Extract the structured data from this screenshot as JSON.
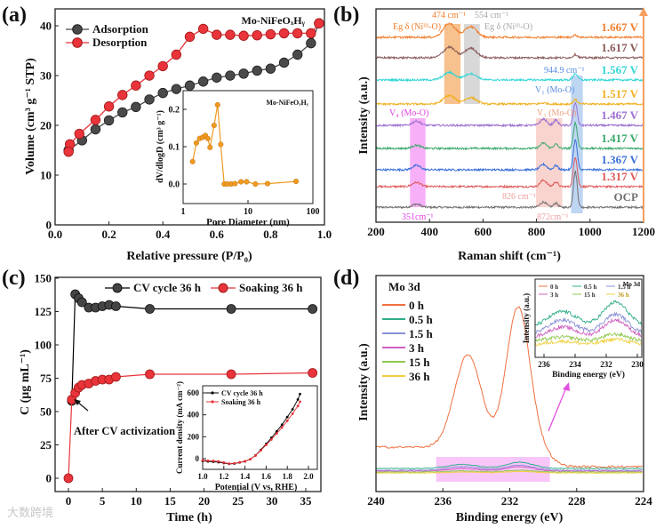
{
  "watermark": "大数跨境",
  "chart_data": [
    {
      "type": "line",
      "panel_label": "(a)",
      "title": "Mo-NiFeOₓHᵧ",
      "xlabel": "Relative pressure (P/P₀)",
      "ylabel": "Volume (cm³ g⁻¹ STP)",
      "xlim": [
        0,
        1
      ],
      "ylim": [
        0,
        43.4
      ],
      "xticks": [
        "0.0",
        "0.2",
        "0.4",
        "0.6",
        "0.8",
        "1.0"
      ],
      "yticks": [
        "0",
        "10",
        "20",
        "30",
        "40"
      ],
      "series": [
        {
          "name": "Adsorption",
          "color": "#4a4a4a",
          "x": [
            0.05,
            0.1,
            0.15,
            0.2,
            0.25,
            0.3,
            0.35,
            0.4,
            0.45,
            0.5,
            0.55,
            0.6,
            0.65,
            0.7,
            0.75,
            0.8,
            0.85,
            0.9,
            0.95,
            0.98
          ],
          "y": [
            15,
            17,
            19.2,
            21,
            22.6,
            23.7,
            25.2,
            26.5,
            27.3,
            28,
            28.8,
            29.6,
            30,
            30.4,
            31,
            31.4,
            32.6,
            34.2,
            36.5,
            40.5
          ]
        },
        {
          "name": "Desorption",
          "color": "#e8343a",
          "x": [
            0.98,
            0.95,
            0.9,
            0.85,
            0.8,
            0.75,
            0.7,
            0.65,
            0.6,
            0.55,
            0.5,
            0.45,
            0.4,
            0.35,
            0.3,
            0.25,
            0.2,
            0.15,
            0.09,
            0.055,
            0.05
          ],
          "y": [
            40.5,
            38.5,
            38.5,
            38.5,
            38.3,
            38.1,
            38,
            38.2,
            38.2,
            39.4,
            37.8,
            34.2,
            31.9,
            30,
            28,
            26.1,
            23.8,
            21.1,
            18.3,
            16.2,
            14.7
          ]
        }
      ],
      "inset": {
        "title": "Mo-NiFeOₓHᵧ",
        "xlabel": "Pore Diameter (nm)",
        "ylabel": "dV/dlogD (cm³ g⁻¹)",
        "xscale": "log",
        "xlim": [
          1,
          100
        ],
        "ylim": [
          -0.036,
          0.25
        ],
        "xticks": [
          "1",
          "10",
          "100"
        ],
        "yticks": [
          "0.0",
          "0.1",
          "0.2"
        ],
        "series": [
          {
            "name": "Pore size distribution",
            "color": "#f09a20",
            "x": [
              1.4,
              1.6,
              1.8,
              2.0,
              2.2,
              2.4,
              2.6,
              3.0,
              3.4,
              3.8,
              4.3,
              4.8,
              5.5,
              6.3,
              7.8,
              9.5,
              13,
              20,
              55
            ],
            "y": [
              0.06,
              0.11,
              0.122,
              0.125,
              0.13,
              0.122,
              0.098,
              0.157,
              0.212,
              0.106,
              0,
              0,
              0,
              0.001,
              0.006,
              0.006,
              0,
              0.001,
              0.007
            ]
          }
        ]
      }
    },
    {
      "type": "line",
      "panel_label": "(b)",
      "xlabel": "Raman shift (cm⁻¹)",
      "ylabel": "Intensity (a.u.)",
      "xlim": [
        200,
        1200
      ],
      "ylim": [
        0,
        10
      ],
      "xticks": [
        "200",
        "400",
        "600",
        "800",
        "1000",
        "1200"
      ],
      "series": [
        {
          "name": "OCP",
          "color": "#707070",
          "offset": 0.7,
          "peaks": [
            [
              351,
              0.15,
              15
            ],
            [
              826,
              0.25,
              12
            ],
            [
              872,
              0.2,
              8
            ],
            [
              945,
              1.67,
              7
            ]
          ]
        },
        {
          "name": "1.317 V",
          "color": "#e05a5a",
          "offset": 1.67,
          "peaks": [
            [
              351,
              0.2,
              15
            ],
            [
              826,
              0.3,
              12
            ],
            [
              872,
              0.22,
              8
            ],
            [
              945,
              1.4,
              7
            ]
          ]
        },
        {
          "name": "1.367 V",
          "color": "#3a6fd8",
          "offset": 2.46,
          "peaks": [
            [
              351,
              0.2,
              15
            ],
            [
              826,
              0.25,
              12
            ],
            [
              872,
              0.2,
              8
            ],
            [
              945,
              1.4,
              7
            ]
          ]
        },
        {
          "name": "1.417 V",
          "color": "#3aa86a",
          "offset": 3.46,
          "peaks": [
            [
              351,
              0.15,
              15
            ],
            [
              826,
              0.25,
              12
            ],
            [
              872,
              0.2,
              8
            ],
            [
              945,
              1.2,
              7
            ]
          ]
        },
        {
          "name": "1.467 V",
          "color": "#9b6fd0",
          "offset": 4.54,
          "peaks": [
            [
              351,
              0.2,
              15
            ],
            [
              826,
              0.3,
              12
            ],
            [
              872,
              0.25,
              8
            ],
            [
              945,
              1.05,
              7
            ]
          ]
        },
        {
          "name": "1.517 V",
          "color": "#f0b020",
          "offset": 5.54,
          "peaks": [
            [
              474,
              0.4,
              22
            ],
            [
              554,
              0.3,
              22
            ],
            [
              826,
              0.05,
              12
            ],
            [
              945,
              0.2,
              8
            ]
          ]
        },
        {
          "name": "1.567 V",
          "color": "#33d6d6",
          "offset": 6.67,
          "peaks": [
            [
              474,
              0.35,
              22
            ],
            [
              554,
              0.3,
              22
            ],
            [
              945,
              0.3,
              8
            ]
          ]
        },
        {
          "name": "1.617 V",
          "color": "#8a5a5a",
          "offset": 7.71,
          "peaks": [
            [
              474,
              0.5,
              22
            ],
            [
              554,
              0.45,
              22
            ],
            [
              945,
              0.15,
              8
            ]
          ]
        },
        {
          "name": "1.667 V",
          "color": "#f08030",
          "offset": 8.67,
          "peaks": [
            [
              474,
              0.65,
              22
            ],
            [
              554,
              0.5,
              22
            ],
            [
              945,
              0.1,
              8
            ]
          ]
        }
      ],
      "bands": [
        {
          "range": [
            455,
            516
          ],
          "color": "#f09030"
        },
        {
          "range": [
            529,
            588
          ],
          "color": "#b8b8b8"
        },
        {
          "range": [
            929,
            973
          ],
          "color": "#8ab4ea"
        },
        {
          "range": [
            327,
            385
          ],
          "color": "#f070f0"
        },
        {
          "range": [
            798,
            896
          ],
          "color": "#f4b0a8"
        }
      ],
      "annotations": [
        {
          "text": "474 cm⁻¹",
          "color": "#f08030"
        },
        {
          "text": "554 cm⁻¹",
          "color": "#a8a8a8"
        },
        {
          "text": "Eg δ (Niᴵᴵᴵ-O)",
          "color": "#f08030"
        },
        {
          "text": "Eg δ (Niᴵᴵᴵ-O)",
          "color": "#a8a8a8"
        },
        {
          "text": "944.9 cm⁻¹",
          "color": "#5b8ee0"
        },
        {
          "text": "V₁ (Mo-O)",
          "color": "#5b8ee0"
        },
        {
          "text": "V₄ (Mo-O)",
          "color": "#e040e0"
        },
        {
          "text": "V₃ (Mo-O)",
          "color": "#f0a080"
        },
        {
          "text": "826 cm⁻¹",
          "color": "#f0a0a0"
        },
        {
          "text": "872cm⁻¹",
          "color": "#f0a0a0"
        },
        {
          "text": "351cm⁻¹",
          "color": "#e040e0"
        }
      ]
    },
    {
      "type": "line",
      "panel_label": "(c)",
      "xlabel": "Time (h)",
      "ylabel": "C (μg mL⁻¹)",
      "xlim": [
        -2,
        37
      ],
      "ylim": [
        -10,
        150
      ],
      "xticks": [
        "0",
        "5",
        "10",
        "15",
        "20",
        "25",
        "30",
        "35"
      ],
      "yticks": [
        "0",
        "25",
        "50",
        "75",
        "100",
        "125",
        "150"
      ],
      "annotation": "After CV activization",
      "series": [
        {
          "name": "CV cycle 36 h",
          "color": "#000000",
          "marker": "#444444",
          "x": [
            0.5,
            1,
            1.5,
            2,
            3,
            4,
            5,
            6,
            7,
            12,
            24,
            36
          ],
          "y": [
            58,
            138,
            135,
            132,
            128,
            128,
            129,
            130,
            129,
            127,
            127,
            127
          ]
        },
        {
          "name": "Soaking 36 h",
          "color": "#e8343a",
          "marker": "#e8343a",
          "x": [
            0,
            0.5,
            1,
            1.5,
            2,
            3,
            4,
            5,
            6,
            7,
            12,
            24,
            36
          ],
          "y": [
            0,
            59,
            64,
            68,
            70,
            71,
            73,
            74,
            74,
            76,
            78,
            78,
            79
          ]
        }
      ],
      "inset": {
        "xlabel": "Potential (V vs. RHE)",
        "ylabel": "Current density (mA cm⁻²)",
        "xlim": [
          1.0,
          2.0
        ],
        "ylim": [
          -100,
          650
        ],
        "xticks": [
          "1.0",
          "1.2",
          "1.4",
          "1.6",
          "1.8",
          "2.0"
        ],
        "yticks": [
          "0",
          "200",
          "400",
          "600"
        ],
        "series": [
          {
            "name": "CV cycle  36 h",
            "color": "#000000",
            "x": [
              1.0,
              1.05,
              1.1,
              1.15,
              1.2,
              1.25,
              1.3,
              1.35,
              1.4,
              1.45,
              1.5,
              1.55,
              1.6,
              1.65,
              1.7,
              1.75,
              1.8,
              1.85,
              1.9,
              1.92
            ],
            "y": [
              -20,
              -25,
              -28,
              -32,
              -40,
              -48,
              -45,
              -35,
              -25,
              -5,
              30,
              80,
              135,
              190,
              250,
              310,
              380,
              450,
              540,
              590
            ]
          },
          {
            "name": "Soaking 36 h",
            "color": "#e8343a",
            "x": [
              1.0,
              1.05,
              1.1,
              1.15,
              1.2,
              1.25,
              1.3,
              1.35,
              1.4,
              1.45,
              1.5,
              1.55,
              1.6,
              1.65,
              1.7,
              1.75,
              1.8,
              1.85,
              1.9,
              1.92
            ],
            "y": [
              -15,
              -18,
              -20,
              -25,
              -35,
              -45,
              -42,
              -33,
              -23,
              -5,
              28,
              75,
              125,
              175,
              230,
              285,
              345,
              410,
              480,
              520
            ]
          }
        ]
      }
    },
    {
      "type": "line",
      "panel_label": "(d)",
      "title": "Mo 3d",
      "xlabel": "Binding energy (eV)",
      "ylabel": "Intensity (a.u.)",
      "xlim": [
        240,
        224
      ],
      "ylim": [
        0,
        12.15
      ],
      "xticks": [
        "240",
        "236",
        "232",
        "228",
        "224"
      ],
      "highlight_range": [
        236.4,
        229.6
      ],
      "series": [
        {
          "name": "0 h",
          "color": "#f07040",
          "baseline": [
            2.5,
            1.4
          ],
          "peaks": [
            [
              234.5,
              5.2,
              0.8
            ],
            [
              231.5,
              7.9,
              0.7
            ]
          ]
        },
        {
          "name": "0.5 h",
          "color": "#2fae8a",
          "baseline": [
            1.3,
            1.3
          ],
          "peaks": [
            [
              234.8,
              0.22,
              0.9
            ],
            [
              231.4,
              0.35,
              0.8
            ]
          ]
        },
        {
          "name": "1.5 h",
          "color": "#8a90d8",
          "baseline": [
            1.2,
            1.2
          ],
          "peaks": [
            [
              234.8,
              0.2,
              0.9
            ],
            [
              231.4,
              0.28,
              0.8
            ]
          ]
        },
        {
          "name": "3 h",
          "color": "#d060c0",
          "baseline": [
            1.15,
            1.15
          ],
          "peaks": [
            [
              234.8,
              0.15,
              0.9
            ],
            [
              231.4,
              0.25,
              0.8
            ]
          ]
        },
        {
          "name": "15 h",
          "color": "#90c850",
          "baseline": [
            1.1,
            1.1
          ],
          "peaks": [
            [
              234.8,
              0.06,
              0.9
            ],
            [
              231.4,
              0.1,
              0.8
            ]
          ]
        },
        {
          "name": "36 h",
          "color": "#f0d040",
          "baseline": [
            1.05,
            1.05
          ],
          "peaks": [
            [
              234.8,
              0.05,
              0.9
            ],
            [
              231.4,
              0.08,
              0.8
            ]
          ]
        }
      ],
      "inset": {
        "title": "Mo 3d",
        "xlabel": "Binding energy (eV)",
        "ylabel": "Intensity (a.u.)",
        "xlim": [
          236.57,
          229.7
        ],
        "ylim": [
          0.875,
          1.975
        ],
        "xticks": [
          "236",
          "234",
          "232",
          "230"
        ]
      }
    }
  ]
}
